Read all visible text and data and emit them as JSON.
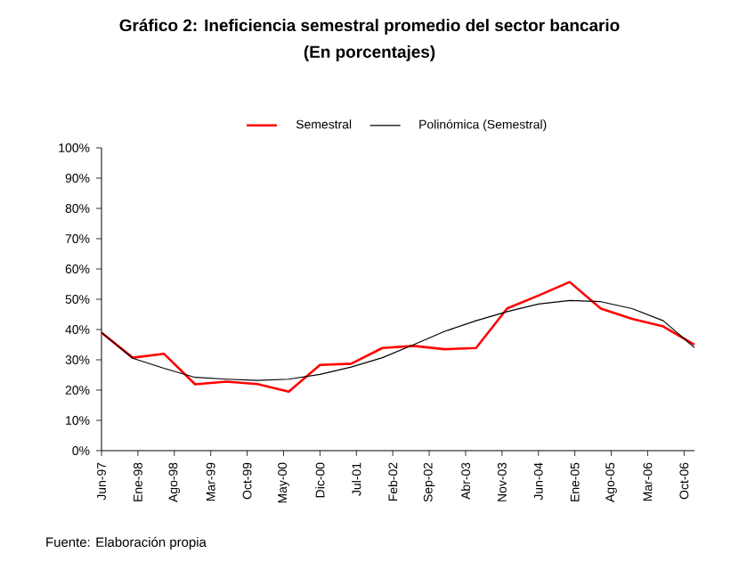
{
  "chart_data": {
    "type": "line",
    "title": "Gráfico 2: Ineficiencia semestral promedio del sector bancario",
    "subtitle": "(En porcentajes)",
    "x": [
      "1997-06",
      "1997-12",
      "1998-06",
      "1998-12",
      "1999-06",
      "1999-12",
      "2000-06",
      "2000-12",
      "2001-06",
      "2001-12",
      "2002-06",
      "2002-12",
      "2003-06",
      "2003-12",
      "2004-06",
      "2004-12",
      "2005-06",
      "2005-12",
      "2006-06",
      "2006-12"
    ],
    "series": [
      {
        "name": "Semestral",
        "color": "#ff0000",
        "values": [
          39,
          30.7,
          32,
          21.9,
          22.8,
          22,
          19.5,
          28.3,
          28.7,
          33.9,
          34.6,
          33.5,
          33.9,
          47,
          51.2,
          55.7,
          46.9,
          43.5,
          41,
          35
        ]
      },
      {
        "name": "Polinómica (Semestral)",
        "color": "#000000",
        "values": [
          39,
          30.5,
          27.2,
          24.2,
          23.6,
          23.2,
          23.6,
          25.2,
          27.6,
          30.7,
          35,
          39.4,
          42.9,
          45.9,
          48.4,
          49.6,
          49.2,
          46.9,
          42.9,
          34
        ]
      }
    ],
    "xlim": [
      "1997-06",
      "2006-12"
    ],
    "xticks": [
      {
        "value": "1997-06",
        "label": "Jun-97"
      },
      {
        "value": "1998-01",
        "label": "Ene-98"
      },
      {
        "value": "1998-08",
        "label": "Ago-98"
      },
      {
        "value": "1999-03",
        "label": "Mar-99"
      },
      {
        "value": "1999-10",
        "label": "Oct-99"
      },
      {
        "value": "2000-05",
        "label": "May-00"
      },
      {
        "value": "2000-12",
        "label": "Dic-00"
      },
      {
        "value": "2001-07",
        "label": "Jul-01"
      },
      {
        "value": "2002-02",
        "label": "Feb-02"
      },
      {
        "value": "2002-09",
        "label": "Sep-02"
      },
      {
        "value": "2003-04",
        "label": "Abr-03"
      },
      {
        "value": "2003-11",
        "label": "Nov-03"
      },
      {
        "value": "2004-06",
        "label": "Jun-04"
      },
      {
        "value": "2005-01",
        "label": "Ene-05"
      },
      {
        "value": "2005-08",
        "label": "Ago-05"
      },
      {
        "value": "2006-03",
        "label": "Mar-06"
      },
      {
        "value": "2006-10",
        "label": "Oct-06"
      }
    ],
    "ylim": [
      0,
      100
    ],
    "yticks": [
      {
        "value": 0,
        "label": "0%"
      },
      {
        "value": 10,
        "label": "10%"
      },
      {
        "value": 20,
        "label": "20%"
      },
      {
        "value": 30,
        "label": "30%"
      },
      {
        "value": 40,
        "label": "40%"
      },
      {
        "value": 50,
        "label": "50%"
      },
      {
        "value": 60,
        "label": "60%"
      },
      {
        "value": 70,
        "label": "70%"
      },
      {
        "value": 80,
        "label": "80%"
      },
      {
        "value": 90,
        "label": "90%"
      },
      {
        "value": 100,
        "label": "100%"
      }
    ],
    "grid": false,
    "legend": "top",
    "marker": "none",
    "line_style": "solid",
    "annotations": [
      "Fuente: Elaboración propia"
    ]
  }
}
